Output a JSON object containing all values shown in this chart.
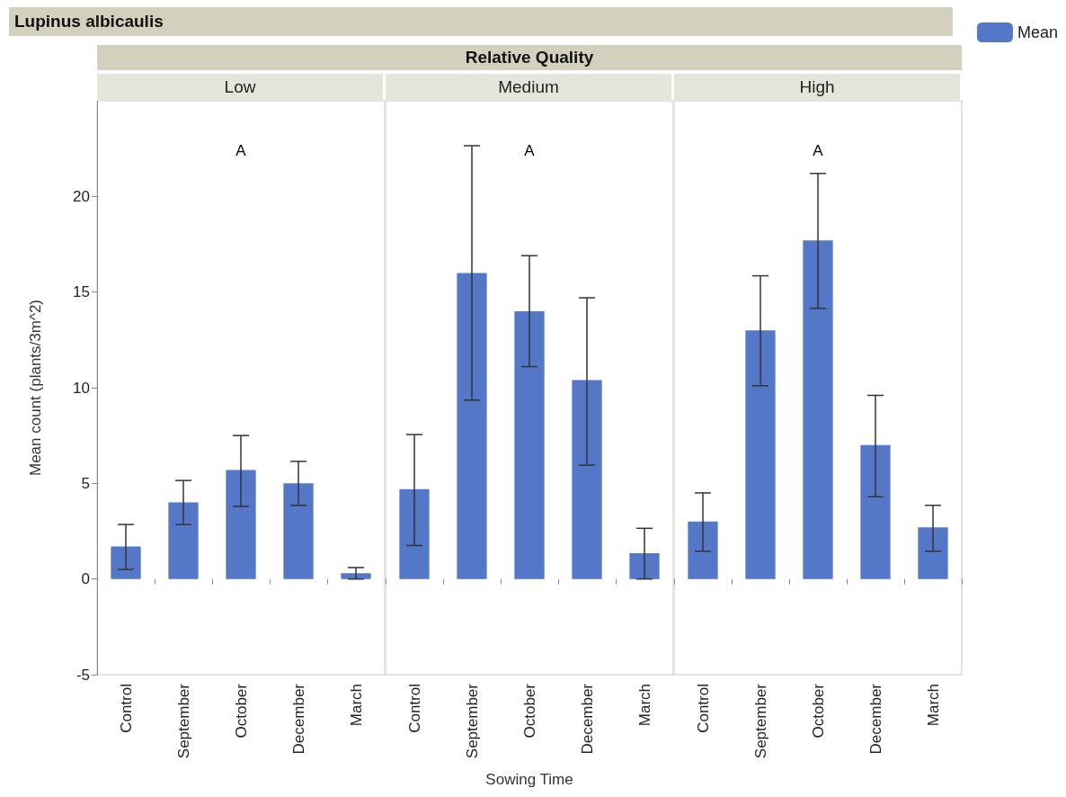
{
  "chart_data": [
    {
      "type": "bar",
      "title": "Low",
      "ylabel": "Mean count (plants/3m^2)",
      "annotations": [
        "Lupinus albicaulis",
        "A"
      ],
      "categories": [
        "Control",
        "September",
        "October",
        "December",
        "March"
      ],
      "series": [
        {
          "color": "#5577c8",
          "values": [
            1.7,
            4.0,
            5.7,
            5.0,
            0.3
          ],
          "errors": [
            [
              0.5,
              2.85
            ],
            [
              2.85,
              5.15
            ],
            [
              3.8,
              7.5
            ],
            [
              3.85,
              6.15
            ],
            [
              0,
              0.6
            ]
          ]
        }
      ],
      "ylim": [
        -5,
        25
      ],
      "yticks": [
        -5,
        0,
        5,
        10,
        15,
        20
      ]
    },
    {
      "type": "bar",
      "title": "Medium",
      "xlabel": "Sowing Time",
      "annotations": [
        "Relative Quality",
        "A"
      ],
      "categories": [
        "Control",
        "September",
        "October",
        "December",
        "March"
      ],
      "series": [
        {
          "color": "#5577c8",
          "values": [
            4.7,
            16.0,
            14.0,
            10.4,
            1.35
          ],
          "errors": [
            [
              1.75,
              7.55
            ],
            [
              9.35,
              22.65
            ],
            [
              11.1,
              16.9
            ],
            [
              5.95,
              14.7
            ],
            [
              0,
              2.65
            ]
          ]
        }
      ],
      "ylim": [
        -5,
        25
      ],
      "yticks": [
        -5,
        0,
        5,
        10,
        15,
        20
      ],
      "tick_labels": "x"
    },
    {
      "type": "bar",
      "title": "High",
      "legend": "top right",
      "annotations": [
        "A"
      ],
      "categories": [
        "Control",
        "September",
        "October",
        "December",
        "March"
      ],
      "series": [
        {
          "name": "Mean",
          "color": "#5577c8",
          "values": [
            3.0,
            13.0,
            17.7,
            7.0,
            2.7
          ],
          "errors": [
            [
              1.45,
              4.5
            ],
            [
              10.1,
              15.85
            ],
            [
              14.15,
              21.2
            ],
            [
              4.3,
              9.6
            ],
            [
              1.45,
              3.85
            ]
          ]
        }
      ],
      "ylim": [
        -5,
        25
      ],
      "yticks": [
        -5,
        0,
        5,
        10,
        15,
        20
      ],
      "tick_labels": "x"
    }
  ]
}
